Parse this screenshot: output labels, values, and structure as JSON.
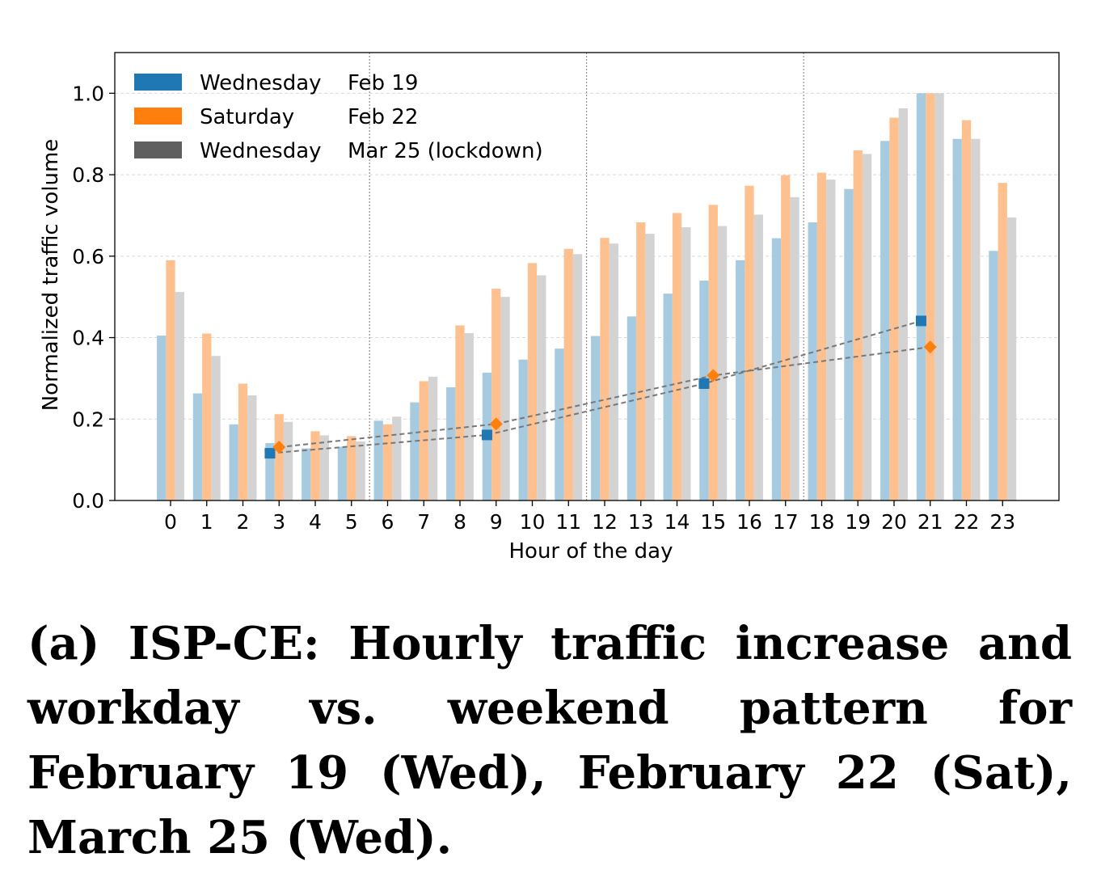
{
  "chart_data": {
    "type": "bar",
    "title": "",
    "xlabel": "Hour of the day",
    "ylabel": "Normalized traffic volume",
    "ylim": [
      0,
      1.1
    ],
    "yticks": [
      "0.0",
      "0.2",
      "0.4",
      "0.6",
      "0.8",
      "1.0"
    ],
    "categories": [
      "0",
      "1",
      "2",
      "3",
      "4",
      "5",
      "6",
      "7",
      "8",
      "9",
      "10",
      "11",
      "12",
      "13",
      "14",
      "15",
      "16",
      "17",
      "18",
      "19",
      "20",
      "21",
      "22",
      "23"
    ],
    "grid": "horizontal dashed",
    "legend_position": "top-left",
    "vlines_at_hours": [
      6,
      12,
      18
    ],
    "series": [
      {
        "name": "Wednesday",
        "date": "Feb 19",
        "color": "#1f77b4",
        "bar_color": "#a6cbe0",
        "values": [
          0.405,
          0.263,
          0.187,
          0.141,
          0.128,
          0.132,
          0.196,
          0.241,
          0.278,
          0.314,
          0.346,
          0.373,
          0.404,
          0.452,
          0.508,
          0.54,
          0.59,
          0.644,
          0.683,
          0.765,
          0.883,
          1.0,
          0.888,
          0.613
        ]
      },
      {
        "name": "Saturday",
        "date": "Feb 22",
        "color": "#ff7f0e",
        "bar_color": "#fec08e",
        "values": [
          0.59,
          0.41,
          0.287,
          0.212,
          0.17,
          0.158,
          0.187,
          0.293,
          0.43,
          0.52,
          0.583,
          0.618,
          0.645,
          0.683,
          0.706,
          0.726,
          0.773,
          0.799,
          0.805,
          0.86,
          0.94,
          1.0,
          0.934,
          0.78
        ]
      },
      {
        "name": "Wednesday",
        "date": "Mar 25 (lockdown)",
        "color": "#5f5f5f",
        "bar_color": "#d3d3d3",
        "values": [
          0.512,
          0.355,
          0.258,
          0.193,
          0.16,
          0.145,
          0.206,
          0.304,
          0.411,
          0.5,
          0.553,
          0.605,
          0.631,
          0.655,
          0.671,
          0.674,
          0.702,
          0.745,
          0.788,
          0.851,
          0.963,
          1.0,
          0.888,
          0.695
        ]
      }
    ],
    "markers": [
      {
        "series": 0,
        "shape": "square",
        "color": "#1f77b4",
        "points": [
          {
            "hour": 3,
            "value": 0.116
          },
          {
            "hour": 9,
            "value": 0.161
          },
          {
            "hour": 15,
            "value": 0.287
          },
          {
            "hour": 21,
            "value": 0.441
          }
        ]
      },
      {
        "series": 1,
        "shape": "diamond",
        "color": "#ff7f0e",
        "points": [
          {
            "hour": 3,
            "value": 0.131
          },
          {
            "hour": 9,
            "value": 0.188
          },
          {
            "hour": 15,
            "value": 0.307
          },
          {
            "hour": 21,
            "value": 0.377
          }
        ]
      }
    ]
  },
  "caption": "(a) ISP-CE: Hourly traffic increase and work­day vs. weekend pattern for February 19 (Wed), February 22 (Sat), March 25 (Wed)."
}
